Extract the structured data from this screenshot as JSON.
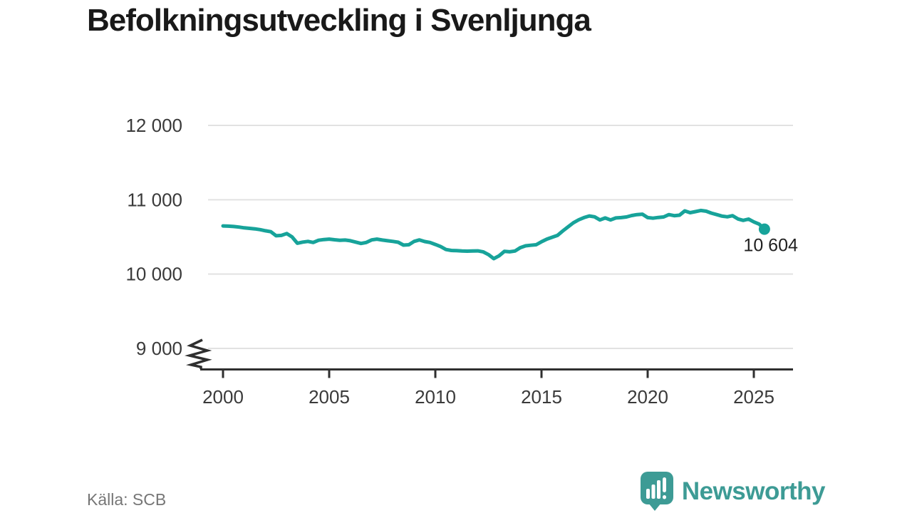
{
  "title": "Befolkningsutveckling i Svenljunga",
  "footer": {
    "source": "Källa: SCB",
    "brand": "Newsworthy"
  },
  "colors": {
    "line": "#17a39a",
    "axis": "#2f2f2f",
    "grid": "#e2e2e2",
    "tick_label": "#3a3a3a",
    "annotation": "#1f1f1f",
    "brand_teal": "#3d9b95"
  },
  "chart_data": {
    "type": "line",
    "title": "Befolkningsutveckling i Svenljunga",
    "series_name": "Befolkning i Svenljunga",
    "x_unit": "year (quarterly steps)",
    "x_start": 2000,
    "x_step": 0.25,
    "values": [
      10648,
      10645,
      10640,
      10632,
      10622,
      10615,
      10608,
      10598,
      10582,
      10570,
      10515,
      10520,
      10545,
      10500,
      10415,
      10430,
      10440,
      10425,
      10455,
      10465,
      10470,
      10462,
      10455,
      10458,
      10448,
      10430,
      10412,
      10425,
      10460,
      10470,
      10458,
      10448,
      10440,
      10428,
      10390,
      10395,
      10440,
      10460,
      10438,
      10425,
      10398,
      10370,
      10330,
      10318,
      10315,
      10310,
      10308,
      10310,
      10312,
      10300,
      10262,
      10208,
      10245,
      10305,
      10300,
      10310,
      10355,
      10380,
      10388,
      10395,
      10435,
      10470,
      10495,
      10520,
      10580,
      10635,
      10690,
      10730,
      10760,
      10782,
      10770,
      10728,
      10755,
      10728,
      10755,
      10760,
      10768,
      10788,
      10800,
      10806,
      10760,
      10752,
      10762,
      10768,
      10800,
      10786,
      10792,
      10850,
      10826,
      10840,
      10856,
      10846,
      10820,
      10800,
      10780,
      10770,
      10786,
      10742,
      10722,
      10740,
      10702,
      10672,
      10604
    ],
    "end_label": "10 604",
    "xticks": [
      2000,
      2005,
      2010,
      2015,
      2020,
      2025
    ],
    "yticks": [
      9000,
      10000,
      11000,
      12000
    ],
    "ytick_labels": [
      "9 000",
      "10 000",
      "11 000",
      "12 000"
    ],
    "ylim": [
      9000,
      12400
    ],
    "xlim": [
      2000,
      2026.8
    ],
    "axis_break": true,
    "grid": "horizontal-only",
    "legend": "none",
    "xlabel": "",
    "ylabel": ""
  }
}
